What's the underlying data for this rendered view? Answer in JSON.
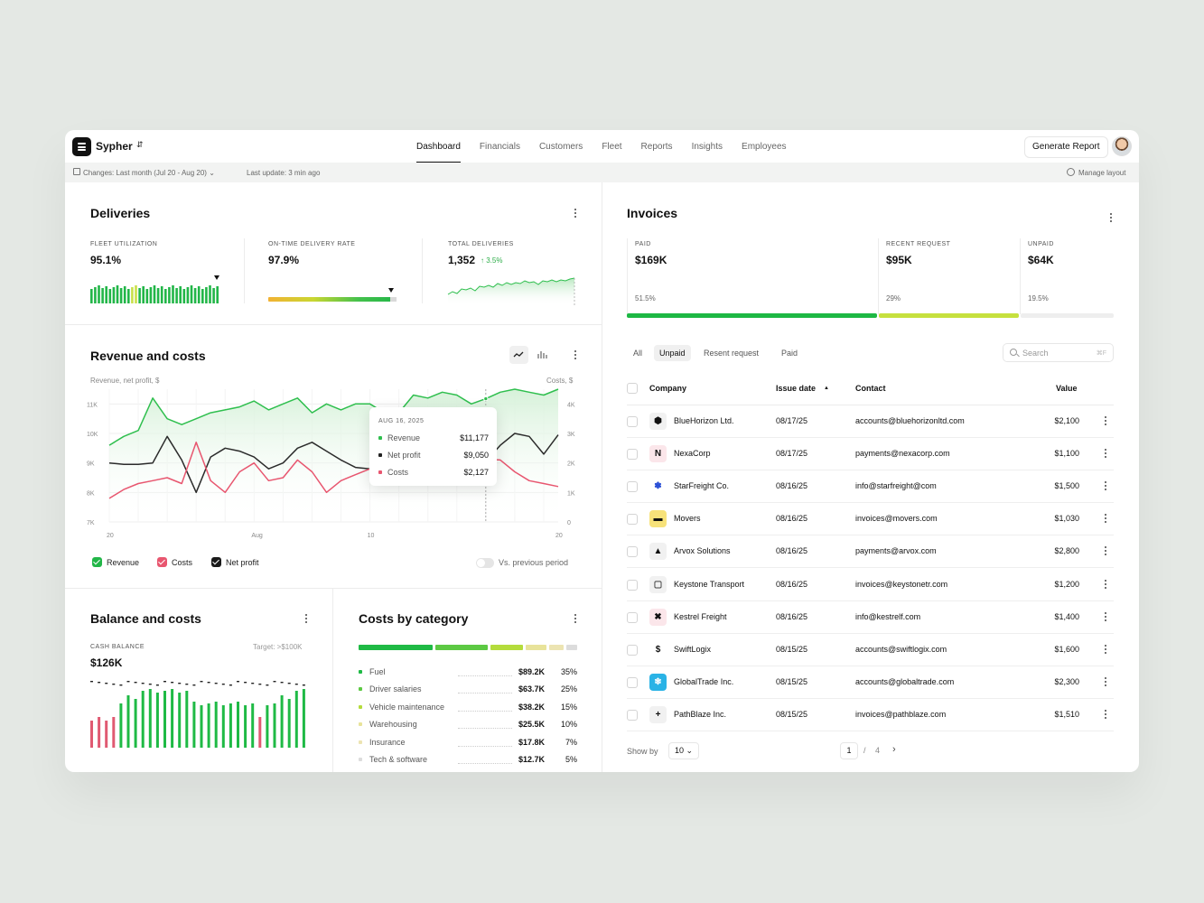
{
  "app": {
    "brand": "Sypher",
    "nav": [
      "Dashboard",
      "Financials",
      "Customers",
      "Fleet",
      "Reports",
      "Insights",
      "Employees"
    ],
    "active_nav": "Dashboard",
    "generate_report": "Generate Report",
    "changes": "Changes:  Last month (Jul 20 - Aug 20) ⌄",
    "last_update": "Last update: 3 min ago",
    "manage_layout": "Manage layout"
  },
  "deliveries": {
    "title": "Deliveries",
    "fleet_label": "FLEET UTILIZATION",
    "fleet_value": "95.1%",
    "ontime_label": "ON-TIME DELIVERY RATE",
    "ontime_value": "97.9%",
    "total_label": "TOTAL DELIVERIES",
    "total_value": "1,352",
    "total_change": "↑ 3.5%"
  },
  "revenue": {
    "title": "Revenue and costs",
    "left_axis_label": "Revenue, net profit, $",
    "right_axis_label": "Costs, $",
    "legend": {
      "revenue": "Revenue",
      "costs": "Costs",
      "net_profit": "Net profit"
    },
    "vs_previous": "Vs. previous period",
    "tooltip": {
      "date": "AUG 16, 2025",
      "revenue_label": "Revenue",
      "revenue_value": "$11,177",
      "net_label": "Net profit",
      "net_value": "$9,050",
      "costs_label": "Costs",
      "costs_value": "$2,127"
    }
  },
  "chart_data": {
    "type": "line",
    "x_ticks": [
      "20",
      "Aug",
      "10",
      "20"
    ],
    "y_left_ticks": [
      "11K",
      "10K",
      "9K",
      "8K",
      "7K"
    ],
    "y_right_ticks": [
      "4K",
      "3K",
      "2K",
      "1K",
      "0"
    ],
    "ylim_left": [
      7000,
      11500
    ],
    "ylim_right": [
      0,
      4500
    ],
    "series": [
      {
        "name": "Revenue",
        "axis": "left",
        "color": "#2fbf4e",
        "values": [
          9600,
          9900,
          10100,
          11200,
          10500,
          10300,
          10500,
          10700,
          10800,
          10900,
          11100,
          10800,
          11000,
          11200,
          10700,
          11000,
          10800,
          11000,
          11000,
          10700,
          10700,
          11300,
          11200,
          11400,
          11300,
          11000,
          11177,
          11400,
          11500,
          11400,
          11300,
          11500
        ]
      },
      {
        "name": "Net profit",
        "axis": "left",
        "color": "#2b2b2b",
        "values": [
          9000,
          8950,
          8950,
          9000,
          9900,
          9100,
          8000,
          9200,
          9500,
          9400,
          9200,
          8800,
          9000,
          9500,
          9700,
          9400,
          9100,
          8850,
          8800,
          9300,
          9700,
          10000,
          10100,
          9300,
          8400,
          9000,
          9050,
          9600,
          10000,
          9900,
          9300,
          9950
        ]
      },
      {
        "name": "Costs",
        "axis": "right",
        "color": "#e8566f",
        "values": [
          800,
          1100,
          1300,
          1400,
          1500,
          1300,
          2700,
          1400,
          1000,
          1700,
          2000,
          1400,
          1500,
          2100,
          1700,
          1000,
          1400,
          1600,
          1800,
          2100,
          2600,
          1900,
          1300,
          1400,
          2400,
          3100,
          2127,
          2100,
          1700,
          1400,
          1300,
          1200
        ]
      }
    ]
  },
  "balance": {
    "title": "Balance and costs",
    "cash_label": "CASH BALANCE",
    "target": "Target: >$100K",
    "cash_value": "$126K"
  },
  "balance_chart": {
    "type": "bar",
    "values": [
      -3,
      -3,
      -3,
      -3,
      1,
      2,
      2,
      3,
      3,
      3,
      3,
      3,
      3,
      3,
      1,
      1,
      1,
      1,
      1,
      1,
      1,
      1,
      1,
      -2,
      1,
      1,
      2,
      2,
      3,
      3
    ],
    "colors": {
      "positive": "#1fba45",
      "negative": "#e05a72"
    }
  },
  "costs_by_category": {
    "title": "Costs by category",
    "items": [
      {
        "name": "Fuel",
        "value": "$89.2K",
        "pct": "35%",
        "share": 35,
        "color": "#1fba45"
      },
      {
        "name": "Driver salaries",
        "value": "$63.7K",
        "pct": "25%",
        "share": 25,
        "color": "#5cc943"
      },
      {
        "name": "Vehicle maintenance",
        "value": "$38.2K",
        "pct": "15%",
        "share": 15,
        "color": "#b4dc3c"
      },
      {
        "name": "Warehousing",
        "value": "$25.5K",
        "pct": "10%",
        "share": 10,
        "color": "#e8e39a"
      },
      {
        "name": "Insurance",
        "value": "$17.8K",
        "pct": "7%",
        "share": 7,
        "color": "#ece4b2"
      },
      {
        "name": "Tech & software",
        "value": "$12.7K",
        "pct": "5%",
        "share": 5,
        "color": "#dcdcdc"
      }
    ]
  },
  "invoices": {
    "title": "Invoices",
    "paid_label": "PAID",
    "paid_value": "$169K",
    "paid_pct": "51.5%",
    "recent_label": "RECENT REQUEST",
    "recent_value": "$95K",
    "recent_pct": "29%",
    "unpaid_label": "UNPAID",
    "unpaid_value": "$64K",
    "unpaid_pct": "19.5%",
    "filters": [
      "All",
      "Unpaid",
      "Resent request",
      "Paid"
    ],
    "active_filter": "Unpaid",
    "search_placeholder": "Search",
    "search_shortcut": "⌘F",
    "columns": {
      "company": "Company",
      "issue_date": "Issue date",
      "contact": "Contact",
      "value": "Value"
    },
    "rows": [
      {
        "company": "BlueHorizon Ltd.",
        "date": "08/17/25",
        "contact": "accounts@bluehorizonltd.com",
        "value": "$2,100",
        "icon": "hexagon-icon"
      },
      {
        "company": "NexaCorp",
        "date": "08/17/25",
        "contact": "payments@nexacorp.com",
        "value": "$1,100",
        "icon": "n-logo-icon"
      },
      {
        "company": "StarFreight Co.",
        "date": "08/16/25",
        "contact": "info@starfreight@com",
        "value": "$1,500",
        "icon": "star-icon"
      },
      {
        "company": "Movers",
        "date": "08/16/25",
        "contact": "invoices@movers.com",
        "value": "$1,030",
        "icon": "truck-icon"
      },
      {
        "company": "Arvox Solutions",
        "date": "08/16/25",
        "contact": "payments@arvox.com",
        "value": "$2,800",
        "icon": "triangle-icon"
      },
      {
        "company": "Keystone Transport",
        "date": "08/16/25",
        "contact": "invoices@keystonetr.com",
        "value": "$1,200",
        "icon": "keystone-icon"
      },
      {
        "company": "Kestrel Freight",
        "date": "08/16/25",
        "contact": "info@kestrelf.com",
        "value": "$1,400",
        "icon": "x-logo-icon"
      },
      {
        "company": "SwiftLogix",
        "date": "08/15/25",
        "contact": "accounts@swiftlogix.com",
        "value": "$1,600",
        "icon": "bolt-icon"
      },
      {
        "company": "GlobalTrade Inc.",
        "date": "08/15/25",
        "contact": "accounts@globaltrade.com",
        "value": "$2,300",
        "icon": "snowflake-icon"
      },
      {
        "company": "PathBlaze Inc.",
        "date": "08/15/25",
        "contact": "invoices@pathblaze.com",
        "value": "$1,510",
        "icon": "plus-icon"
      }
    ],
    "show_by_label": "Show by",
    "show_by_value": "10 ⌄",
    "page": "1",
    "page_sep": "/",
    "pages": "4"
  }
}
